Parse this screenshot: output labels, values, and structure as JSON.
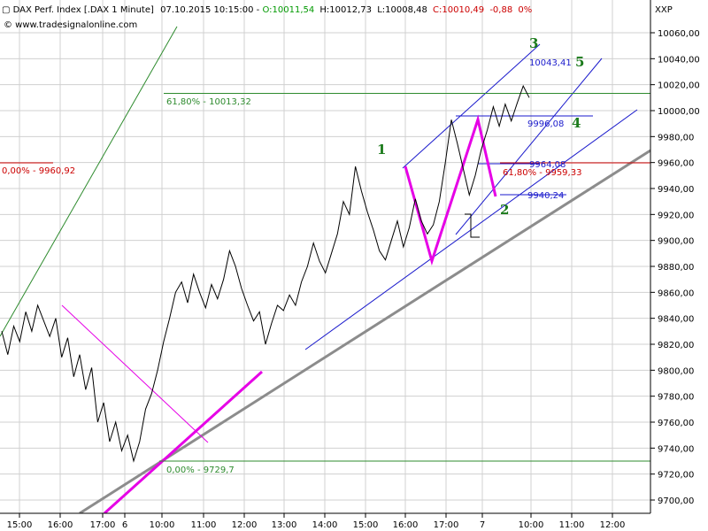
{
  "chart_data": {
    "type": "line",
    "header": {
      "instrument": "DAX Perf. Index [.DAX  1 Minute]",
      "datetime": "07.10.2015 10:15:00",
      "open": "O:10011,54",
      "high": "H:10012,73",
      "low": "L:10008,48",
      "close": "C:10010,49",
      "change": "-0,88",
      "change_pct": "0%",
      "source": "© www.tradesignalonline.com",
      "symbol": "XXP"
    },
    "ylim": [
      9690,
      10080
    ],
    "y_ticks": [
      9700,
      9720,
      9740,
      9760,
      9780,
      9800,
      9820,
      9840,
      9860,
      9880,
      9900,
      9920,
      9940,
      9960,
      9980,
      10000,
      10020,
      10040,
      10060
    ],
    "y_tick_labels": [
      "9700,00",
      "9720,00",
      "9740,00",
      "9760,00",
      "9780,00",
      "9800,00",
      "9820,00",
      "9840,00",
      "9860,00",
      "9880,00",
      "9900,00",
      "9920,00",
      "9940,00",
      "9960,00",
      "9980,00",
      "10000,00",
      "10020,00",
      "10040,00",
      "10060,00"
    ],
    "x_tick_labels": [
      "15:00",
      "16:00",
      "17:00",
      "6",
      "10:00",
      "11:00",
      "12:00",
      "13:00",
      "14:00",
      "15:00",
      "16:00",
      "17:00",
      "7",
      "10:00",
      "11:00",
      "12:00"
    ],
    "price_series": [
      {
        "t": 0,
        "v": 9830
      },
      {
        "t": 1,
        "v": 9812
      },
      {
        "t": 2,
        "v": 9834
      },
      {
        "t": 3,
        "v": 9822
      },
      {
        "t": 4,
        "v": 9845
      },
      {
        "t": 5,
        "v": 9830
      },
      {
        "t": 6,
        "v": 9850
      },
      {
        "t": 7,
        "v": 9838
      },
      {
        "t": 8,
        "v": 9826
      },
      {
        "t": 9,
        "v": 9840
      },
      {
        "t": 10,
        "v": 9810
      },
      {
        "t": 11,
        "v": 9825
      },
      {
        "t": 12,
        "v": 9795
      },
      {
        "t": 13,
        "v": 9812
      },
      {
        "t": 14,
        "v": 9785
      },
      {
        "t": 15,
        "v": 9802
      },
      {
        "t": 16,
        "v": 9760
      },
      {
        "t": 17,
        "v": 9775
      },
      {
        "t": 18,
        "v": 9745
      },
      {
        "t": 19,
        "v": 9760
      },
      {
        "t": 20,
        "v": 9738
      },
      {
        "t": 21,
        "v": 9750
      },
      {
        "t": 22,
        "v": 9730
      },
      {
        "t": 23,
        "v": 9745
      },
      {
        "t": 24,
        "v": 9770
      },
      {
        "t": 25,
        "v": 9782
      },
      {
        "t": 26,
        "v": 9800
      },
      {
        "t": 27,
        "v": 9822
      },
      {
        "t": 28,
        "v": 9840
      },
      {
        "t": 29,
        "v": 9860
      },
      {
        "t": 30,
        "v": 9868
      },
      {
        "t": 31,
        "v": 9852
      },
      {
        "t": 32,
        "v": 9874
      },
      {
        "t": 33,
        "v": 9860
      },
      {
        "t": 34,
        "v": 9848
      },
      {
        "t": 35,
        "v": 9866
      },
      {
        "t": 36,
        "v": 9855
      },
      {
        "t": 37,
        "v": 9870
      },
      {
        "t": 38,
        "v": 9892
      },
      {
        "t": 39,
        "v": 9880
      },
      {
        "t": 40,
        "v": 9863
      },
      {
        "t": 41,
        "v": 9850
      },
      {
        "t": 42,
        "v": 9838
      },
      {
        "t": 43,
        "v": 9845
      },
      {
        "t": 44,
        "v": 9820
      },
      {
        "t": 45,
        "v": 9836
      },
      {
        "t": 46,
        "v": 9850
      },
      {
        "t": 47,
        "v": 9846
      },
      {
        "t": 48,
        "v": 9858
      },
      {
        "t": 49,
        "v": 9850
      },
      {
        "t": 50,
        "v": 9868
      },
      {
        "t": 51,
        "v": 9880
      },
      {
        "t": 52,
        "v": 9898
      },
      {
        "t": 53,
        "v": 9884
      },
      {
        "t": 54,
        "v": 9875
      },
      {
        "t": 55,
        "v": 9890
      },
      {
        "t": 56,
        "v": 9905
      },
      {
        "t": 57,
        "v": 9930
      },
      {
        "t": 58,
        "v": 9920
      },
      {
        "t": 59,
        "v": 9957
      },
      {
        "t": 60,
        "v": 9938
      },
      {
        "t": 61,
        "v": 9922
      },
      {
        "t": 62,
        "v": 9908
      },
      {
        "t": 63,
        "v": 9892
      },
      {
        "t": 64,
        "v": 9885
      },
      {
        "t": 65,
        "v": 9900
      },
      {
        "t": 66,
        "v": 9915
      },
      {
        "t": 67,
        "v": 9895
      },
      {
        "t": 68,
        "v": 9910
      },
      {
        "t": 69,
        "v": 9932
      },
      {
        "t": 70,
        "v": 9915
      },
      {
        "t": 71,
        "v": 9905
      },
      {
        "t": 72,
        "v": 9912
      },
      {
        "t": 73,
        "v": 9930
      },
      {
        "t": 74,
        "v": 9960
      },
      {
        "t": 75,
        "v": 9993
      },
      {
        "t": 76,
        "v": 9975
      },
      {
        "t": 77,
        "v": 9955
      },
      {
        "t": 78,
        "v": 9935
      },
      {
        "t": 79,
        "v": 9950
      },
      {
        "t": 80,
        "v": 9970
      },
      {
        "t": 81,
        "v": 9985
      },
      {
        "t": 82,
        "v": 10003
      },
      {
        "t": 83,
        "v": 9988
      },
      {
        "t": 84,
        "v": 10005
      },
      {
        "t": 85,
        "v": 9992
      },
      {
        "t": 86,
        "v": 10006
      },
      {
        "t": 87,
        "v": 10019
      },
      {
        "t": 88,
        "v": 10010
      }
    ],
    "horizontal_levels": [
      {
        "value": 10013.32,
        "label": "61,80% - 10013,32",
        "color": "#2e8b2e"
      },
      {
        "value": 9729.7,
        "label": "0,00% - 9729,7",
        "color": "#2e8b2e"
      },
      {
        "value": 9960.92,
        "label": "0,00% - 9960,92",
        "color": "#cc0000"
      },
      {
        "value": 9959.33,
        "label": "61,80% - 9959,33",
        "color": "#cc0000"
      },
      {
        "value": 9996.08,
        "label": "9996,08",
        "color": "#1a1acc"
      },
      {
        "value": 9964.08,
        "label": "9964,08",
        "color": "#1a1acc"
      },
      {
        "value": 9940.24,
        "label": "9940,24",
        "color": "#1a1acc"
      },
      {
        "value": 10043.41,
        "label": "10043,41",
        "color": "#1a1acc"
      }
    ],
    "wave_labels": [
      "1",
      "2",
      "3",
      "4",
      "5"
    ],
    "colors": {
      "price": "#000000",
      "grid": "#d0d0d0",
      "wave_line": "#e600e6",
      "trend_grey": "#8c8c8c",
      "channel_blue": "#1a1acc",
      "fib_green": "#2e8b2e",
      "fib_red": "#cc0000",
      "pink_diag": "#e600e6",
      "header_green": "#009900",
      "header_red": "#cc0000"
    },
    "grid": true
  }
}
